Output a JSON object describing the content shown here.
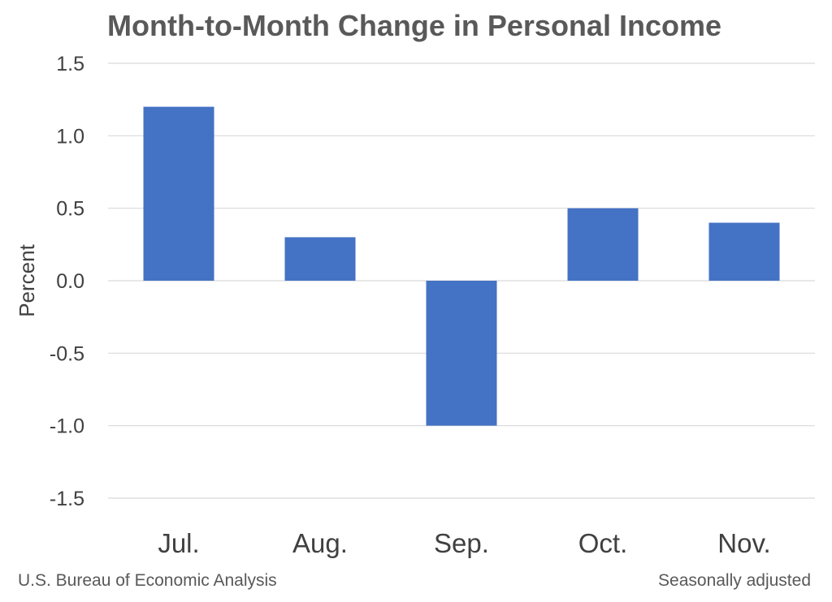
{
  "chart_data": {
    "type": "bar",
    "title": "Month-to-Month Change in Personal Income",
    "categories": [
      "Jul.",
      "Aug.",
      "Sep.",
      "Oct.",
      "Nov."
    ],
    "values": [
      1.2,
      0.3,
      -1.0,
      0.5,
      0.4
    ],
    "ylabel": "Percent",
    "xlabel": "",
    "ylim": [
      -1.5,
      1.5
    ],
    "yticks": [
      1.5,
      1.0,
      0.5,
      0.0,
      -0.5,
      -1.0,
      -1.5
    ],
    "ytick_labels": [
      "1.5",
      "1.0",
      "0.5",
      "0.0",
      "-0.5",
      "-1.0",
      "-1.5"
    ],
    "grid": true,
    "bar_color": "#4472C4"
  },
  "footer": {
    "source": "U.S. Bureau of Economic Analysis",
    "note": "Seasonally adjusted"
  }
}
